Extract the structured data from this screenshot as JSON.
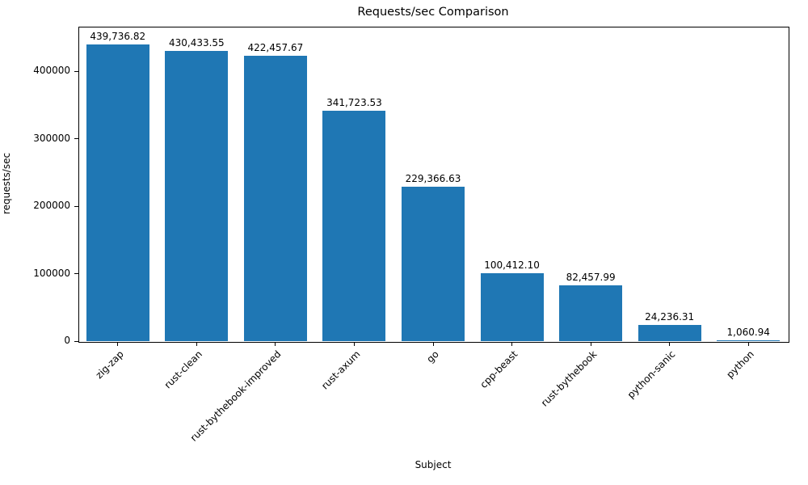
{
  "chart_data": {
    "type": "bar",
    "title": "Requests/sec Comparison",
    "xlabel": "Subject",
    "ylabel": "requests/sec",
    "categories": [
      "zig-zap",
      "rust-clean",
      "rust-bythebook-improved",
      "rust-axum",
      "go",
      "cpp-beast",
      "rust-bythebook",
      "python-sanic",
      "python"
    ],
    "values": [
      439736.82,
      430433.55,
      422457.67,
      341723.53,
      229366.63,
      100412.1,
      82457.99,
      24236.31,
      1060.94
    ],
    "value_labels": [
      "439,736.82",
      "430,433.55",
      "422,457.67",
      "341,723.53",
      "229,366.63",
      "100,412.10",
      "82,457.99",
      "24,236.31",
      "1,060.94"
    ],
    "yticks": [
      0,
      100000,
      200000,
      300000,
      400000
    ],
    "ytick_labels": [
      "0",
      "100000",
      "200000",
      "300000",
      "400000"
    ],
    "ylim": [
      0,
      466000
    ],
    "bar_color": "#1f77b4",
    "grid": false,
    "legend_position": "none"
  }
}
